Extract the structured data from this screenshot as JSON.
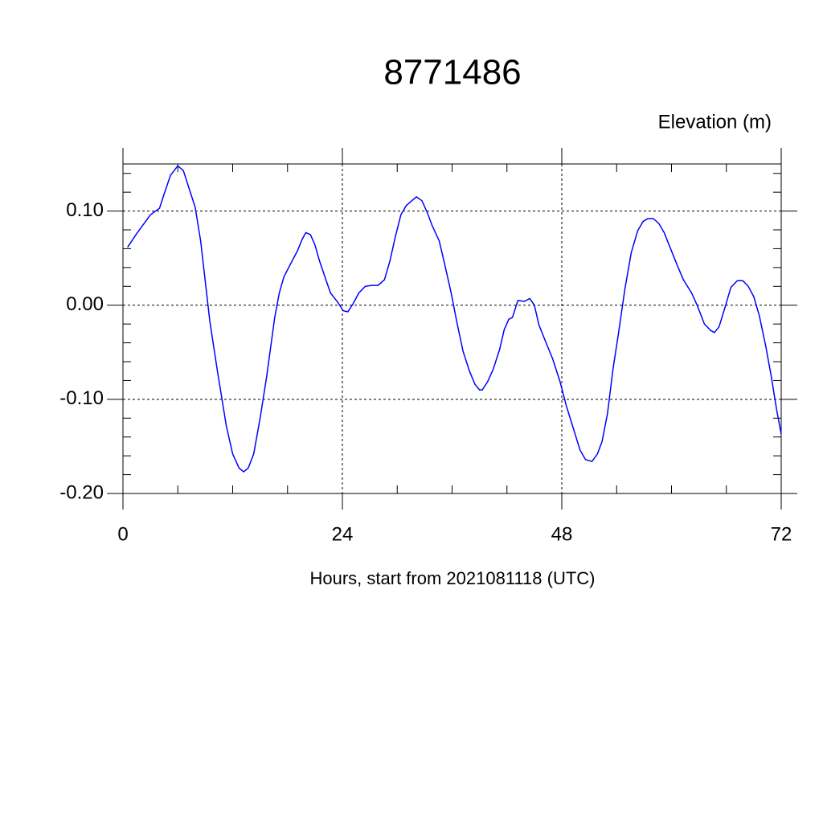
{
  "chart_data": {
    "type": "line",
    "title": "8771486",
    "y_label": "Elevation (m)",
    "x_label": "Hours, start from 2021081118 (UTC)",
    "xlim": [
      0,
      72
    ],
    "ylim": [
      -0.2,
      0.15
    ],
    "xticks": [
      0,
      24,
      48,
      72
    ],
    "yticks": [
      {
        "value": -0.2,
        "label": "-0.20"
      },
      {
        "value": -0.1,
        "label": "-0.10"
      },
      {
        "value": 0,
        "label": "0.00"
      },
      {
        "value": 0.1,
        "label": "0.10"
      }
    ],
    "xminorticks": [
      6,
      12,
      18,
      30,
      36,
      42,
      54,
      60,
      66
    ],
    "yminorticks": [
      -0.18,
      -0.16,
      -0.14,
      -0.12,
      -0.08,
      -0.06,
      -0.04,
      -0.02,
      0.02,
      0.04,
      0.06,
      0.08,
      0.12,
      0.14
    ],
    "grid": true,
    "series": [
      {
        "name": "Elevation",
        "color": "#0000ff",
        "x": [
          0.5,
          1.5,
          3,
          4,
          4.5,
          5.2,
          6,
          6.6,
          7.1,
          7.9,
          8.5,
          9.5,
          10.3,
          11.3,
          12,
          12.7,
          13.2,
          13.7,
          14.3,
          15,
          15.7,
          16.6,
          17.1,
          17.6,
          18.5,
          19.1,
          19.6,
          20,
          20.5,
          21,
          21.5,
          22.2,
          22.7,
          23.5,
          24.1,
          24.6,
          25.2,
          25.8,
          26.5,
          27.2,
          27.9,
          28.6,
          29.2,
          29.8,
          30.4,
          31,
          31.6,
          32.1,
          32.7,
          33.3,
          33.8,
          34.6,
          35.2,
          35.9,
          36.5,
          37.2,
          37.9,
          38.5,
          39,
          39.3,
          39.9,
          40.5,
          41.2,
          41.7,
          42.2,
          42.6,
          43.2,
          43.9,
          44.5,
          45,
          45.5,
          46.2,
          47,
          47.8,
          48.5,
          49.3,
          50,
          50.6,
          51.3,
          51.9,
          52.4,
          53,
          53.6,
          54.2,
          54.9,
          55.6,
          56.3,
          56.9,
          57.4,
          58,
          58.6,
          59.2,
          59.9,
          60.6,
          61.3,
          62.2,
          62.8,
          63.6,
          64.3,
          64.7,
          65.2,
          65.8,
          66.5,
          67.2,
          67.8,
          68.4,
          69,
          69.6,
          70.3,
          70.9,
          71.5,
          72
        ],
        "values": [
          0.0615,
          0.076,
          0.096,
          0.103,
          0.118,
          0.138,
          0.148,
          0.143,
          0.128,
          0.104,
          0.068,
          -0.017,
          -0.068,
          -0.128,
          -0.158,
          -0.173,
          -0.177,
          -0.173,
          -0.158,
          -0.12,
          -0.077,
          -0.013,
          0.013,
          0.03,
          0.047,
          0.058,
          0.07,
          0.077,
          0.075,
          0.064,
          0.047,
          0.027,
          0.013,
          0.003,
          -0.006,
          -0.007,
          0.002,
          0.013,
          0.02,
          0.021,
          0.021,
          0.027,
          0.047,
          0.073,
          0.096,
          0.106,
          0.111,
          0.115,
          0.111,
          0.098,
          0.085,
          0.068,
          0.043,
          0.013,
          -0.017,
          -0.049,
          -0.07,
          -0.084,
          -0.09,
          -0.09,
          -0.081,
          -0.068,
          -0.047,
          -0.026,
          -0.015,
          -0.013,
          0.005,
          0.004,
          0.007,
          0,
          -0.021,
          -0.038,
          -0.057,
          -0.081,
          -0.107,
          -0.132,
          -0.154,
          -0.164,
          -0.166,
          -0.158,
          -0.145,
          -0.115,
          -0.068,
          -0.03,
          0.017,
          0.056,
          0.079,
          0.089,
          0.092,
          0.092,
          0.087,
          0.077,
          0.06,
          0.043,
          0.027,
          0.013,
          0,
          -0.02,
          -0.027,
          -0.029,
          -0.023,
          -0.004,
          0.019,
          0.026,
          0.026,
          0.02,
          0.009,
          -0.011,
          -0.043,
          -0.075,
          -0.111,
          -0.137
        ]
      }
    ]
  }
}
